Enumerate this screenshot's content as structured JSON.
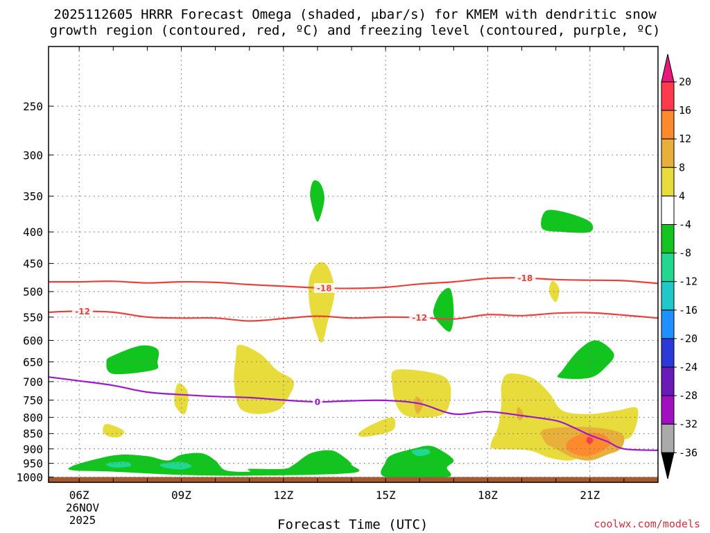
{
  "title_line1": "2025112605 HRRR Forecast Omega (shaded, μbar/s) for KMEM with dendritic snow",
  "title_line2": "growth region (contoured, red, ºC) and freezing level (contoured, purple, ºC)",
  "xlabel": "Forecast Time (UTC)",
  "credit": "coolwx.com/models",
  "chart_data": {
    "type": "time-height cross section",
    "x_ticks": [
      "06Z",
      "09Z",
      "12Z",
      "15Z",
      "18Z",
      "21Z"
    ],
    "x_tick_hours": [
      6,
      9,
      12,
      15,
      18,
      21
    ],
    "x_range_hours": [
      5.1,
      23.0
    ],
    "date_label_line1": "26NOV",
    "date_label_line2": "2025",
    "y_ticks": [
      250,
      300,
      350,
      400,
      450,
      500,
      550,
      600,
      650,
      700,
      750,
      800,
      850,
      900,
      950,
      1000
    ],
    "y_range_hpa": [
      200,
      1020
    ],
    "y_axis_log": true,
    "colorbar_labels": [
      "20",
      "16",
      "12",
      "8",
      "4",
      "-4",
      "-8",
      "-12",
      "-16",
      "-20",
      "-24",
      "-28",
      "-32",
      "-36"
    ],
    "colorbar_colors": [
      "#ff3a4c",
      "#ff8a2e",
      "#e8b03a",
      "#e8dc3c",
      "#ffffff",
      "#12c41e",
      "#20d890",
      "#20c8c8",
      "#1e90ff",
      "#2a3ad8",
      "#6a1ab8",
      "#a010c0",
      "#aaaaaa"
    ],
    "colorbar_top_color": "#e8187a",
    "colorbar_bottom_color": "#000000",
    "contours": [
      {
        "name": "-18C",
        "label": "-18",
        "color": "#e8413c",
        "points": [
          [
            5.1,
            482
          ],
          [
            6,
            482
          ],
          [
            7,
            481
          ],
          [
            8,
            484
          ],
          [
            9,
            482
          ],
          [
            10,
            483
          ],
          [
            11,
            487
          ],
          [
            12,
            490
          ],
          [
            13,
            493
          ],
          [
            14,
            494
          ],
          [
            15,
            492
          ],
          [
            16,
            486
          ],
          [
            17,
            482
          ],
          [
            18,
            476
          ],
          [
            19,
            475
          ],
          [
            20,
            478
          ],
          [
            21,
            479
          ],
          [
            22,
            480
          ],
          [
            23,
            485
          ]
        ],
        "label_at_hours": [
          13.2,
          19.1
        ]
      },
      {
        "name": "-12C",
        "label": "-12",
        "color": "#e8413c",
        "points": [
          [
            5.1,
            540
          ],
          [
            6,
            538
          ],
          [
            7,
            540
          ],
          [
            8,
            550
          ],
          [
            9,
            552
          ],
          [
            10,
            552
          ],
          [
            11,
            558
          ],
          [
            12,
            553
          ],
          [
            13,
            548
          ],
          [
            14,
            552
          ],
          [
            15,
            550
          ],
          [
            16,
            551
          ],
          [
            17,
            554
          ],
          [
            18,
            545
          ],
          [
            19,
            547
          ],
          [
            20,
            542
          ],
          [
            21,
            541
          ],
          [
            22,
            546
          ],
          [
            23,
            552
          ]
        ],
        "label_at_hours": [
          6.1,
          16.0
        ]
      },
      {
        "name": "0C freezing level",
        "label": "0",
        "color": "#9a19c8",
        "points": [
          [
            5.1,
            688
          ],
          [
            6,
            698
          ],
          [
            7,
            710
          ],
          [
            8,
            728
          ],
          [
            9,
            735
          ],
          [
            10,
            740
          ],
          [
            11,
            743
          ],
          [
            12,
            750
          ],
          [
            13,
            755
          ],
          [
            14,
            752
          ],
          [
            15,
            751
          ],
          [
            16,
            760
          ],
          [
            17,
            790
          ],
          [
            18,
            783
          ],
          [
            19,
            795
          ],
          [
            20,
            810
          ],
          [
            20.5,
            830
          ],
          [
            21,
            855
          ],
          [
            21.5,
            875
          ],
          [
            22,
            900
          ],
          [
            23,
            905
          ]
        ],
        "label_at_hours": [
          13.0
        ]
      }
    ],
    "shaded_regions": [
      {
        "value_class": "4 to 8",
        "color": "#e8dc3c",
        "polygons": [
          [
            [
              13,
              450
            ],
            [
              13.3,
              455
            ],
            [
              13.5,
              500
            ],
            [
              13.3,
              560
            ],
            [
              13.1,
              605
            ],
            [
              12.8,
              540
            ],
            [
              12.75,
              480
            ]
          ],
          [
            [
              10.7,
              610
            ],
            [
              11.3,
              630
            ],
            [
              11.8,
              670
            ],
            [
              12.3,
              700
            ],
            [
              12.1,
              750
            ],
            [
              11.8,
              780
            ],
            [
              11.2,
              790
            ],
            [
              10.7,
              770
            ],
            [
              10.55,
              700
            ],
            [
              10.6,
              640
            ]
          ],
          [
            [
              8.9,
              705
            ],
            [
              9.2,
              730
            ],
            [
              9.1,
              790
            ],
            [
              8.8,
              760
            ]
          ],
          [
            [
              15.3,
              670
            ],
            [
              16.5,
              680
            ],
            [
              16.9,
              710
            ],
            [
              16.8,
              780
            ],
            [
              16.3,
              800
            ],
            [
              15.6,
              795
            ],
            [
              15.3,
              760
            ],
            [
              15.2,
              710
            ]
          ],
          [
            [
              14.6,
              822
            ],
            [
              15.2,
              800
            ],
            [
              15.2,
              840
            ],
            [
              14.4,
              860
            ],
            [
              14.2,
              850
            ]
          ],
          [
            [
              18.6,
              680
            ],
            [
              19.3,
              690
            ],
            [
              19.8,
              730
            ],
            [
              20.2,
              780
            ],
            [
              21.0,
              790
            ],
            [
              21.8,
              780
            ],
            [
              22.4,
              775
            ],
            [
              22.2,
              860
            ],
            [
              21.5,
              870
            ],
            [
              21.0,
              890
            ],
            [
              20.8,
              920
            ],
            [
              20.4,
              940
            ],
            [
              19.8,
              930
            ],
            [
              19.2,
              905
            ],
            [
              18.2,
              900
            ],
            [
              18.1,
              880
            ],
            [
              18.3,
              830
            ],
            [
              18.4,
              760
            ],
            [
              18.4,
              710
            ]
          ],
          [
            [
              19.9,
              480
            ],
            [
              20.1,
              495
            ],
            [
              20.0,
              520
            ],
            [
              19.8,
              500
            ]
          ],
          [
            [
              6.8,
              820
            ],
            [
              7.3,
              840
            ],
            [
              7.2,
              860
            ],
            [
              6.9,
              860
            ],
            [
              6.7,
              845
            ]
          ]
        ]
      },
      {
        "value_class": "8 to 12",
        "color": "#e8b03a",
        "polygons": [
          [
            [
              15.9,
              740
            ],
            [
              16.1,
              760
            ],
            [
              15.95,
              790
            ],
            [
              15.85,
              770
            ]
          ],
          [
            [
              18.9,
              770
            ],
            [
              19.05,
              790
            ],
            [
              18.95,
              810
            ],
            [
              18.85,
              790
            ]
          ],
          [
            [
              19.6,
              840
            ],
            [
              20.3,
              830
            ],
            [
              21.0,
              830
            ],
            [
              21.7,
              840
            ],
            [
              22.0,
              860
            ],
            [
              21.9,
              900
            ],
            [
              21.5,
              920
            ],
            [
              21.0,
              940
            ],
            [
              20.5,
              930
            ],
            [
              20.0,
              900
            ],
            [
              19.7,
              880
            ]
          ]
        ]
      },
      {
        "value_class": "12 to 16",
        "color": "#ff8a2e",
        "polygons": [
          [
            [
              20.4,
              870
            ],
            [
              20.8,
              850
            ],
            [
              21.2,
              848
            ],
            [
              21.5,
              860
            ],
            [
              21.6,
              885
            ],
            [
              21.3,
              910
            ],
            [
              20.9,
              925
            ],
            [
              20.5,
              915
            ],
            [
              20.3,
              895
            ]
          ]
        ]
      },
      {
        "value_class": "16 to 20",
        "color": "#ff3a4c",
        "polygons": [
          [
            [
              20.95,
              860
            ],
            [
              21.1,
              870
            ],
            [
              21.0,
              885
            ],
            [
              20.9,
              875
            ]
          ]
        ]
      },
      {
        "value_class": "-4 to -8",
        "color": "#12c41e",
        "polygons": [
          [
            [
              12.9,
              330
            ],
            [
              13.1,
              335
            ],
            [
              13.2,
              355
            ],
            [
              13.0,
              385
            ],
            [
              12.8,
              355
            ],
            [
              12.8,
              340
            ]
          ],
          [
            [
              19.7,
              370
            ],
            [
              20.3,
              372
            ],
            [
              21.0,
              385
            ],
            [
              21.0,
              400
            ],
            [
              20.2,
              400
            ],
            [
              19.6,
              395
            ]
          ],
          [
            [
              16.6,
              505
            ],
            [
              16.9,
              495
            ],
            [
              17.0,
              540
            ],
            [
              16.9,
              580
            ],
            [
              16.6,
              565
            ],
            [
              16.4,
              540
            ]
          ],
          [
            [
              7.0,
              635
            ],
            [
              7.8,
              612
            ],
            [
              8.3,
              620
            ],
            [
              8.3,
              650
            ],
            [
              8.2,
              670
            ],
            [
              7.0,
              680
            ],
            [
              6.8,
              650
            ]
          ],
          [
            [
              20.7,
              620
            ],
            [
              21.2,
              600
            ],
            [
              21.7,
              630
            ],
            [
              21.5,
              660
            ],
            [
              21.0,
              690
            ],
            [
              20.1,
              690
            ],
            [
              20.2,
              670
            ]
          ],
          [
            [
              5.8,
              960
            ],
            [
              6.5,
              935
            ],
            [
              7.2,
              920
            ],
            [
              8.0,
              925
            ],
            [
              8.6,
              940
            ],
            [
              9.0,
              920
            ],
            [
              9.6,
              915
            ],
            [
              10.0,
              940
            ],
            [
              10.3,
              975
            ],
            [
              11.0,
              980
            ],
            [
              11.0,
              970
            ],
            [
              12.0,
              970
            ],
            [
              12.3,
              955
            ],
            [
              12.8,
              915
            ],
            [
              13.4,
              905
            ],
            [
              13.8,
              930
            ],
            [
              14.0,
              955
            ],
            [
              14.0,
              985
            ],
            [
              11.0,
              995
            ],
            [
              9.0,
              992
            ],
            [
              7.0,
              980
            ],
            [
              5.8,
              975
            ]
          ],
          [
            [
              15.0,
              945
            ],
            [
              15.2,
              920
            ],
            [
              15.8,
              900
            ],
            [
              16.3,
              890
            ],
            [
              16.7,
              910
            ],
            [
              17.0,
              940
            ],
            [
              16.8,
              965
            ],
            [
              16.8,
              1000
            ],
            [
              15.0,
              1000
            ]
          ]
        ]
      },
      {
        "value_class": "-8 to -12",
        "color": "#20d890",
        "polygons": [
          [
            [
              6.8,
              950
            ],
            [
              7.4,
              945
            ],
            [
              7.5,
              960
            ],
            [
              7.0,
              965
            ]
          ],
          [
            [
              8.4,
              952
            ],
            [
              9.0,
              945
            ],
            [
              9.3,
              960
            ],
            [
              9.0,
              972
            ],
            [
              8.5,
              965
            ]
          ],
          [
            [
              15.8,
              905
            ],
            [
              16.2,
              900
            ],
            [
              16.3,
              915
            ],
            [
              16.0,
              925
            ],
            [
              15.8,
              915
            ]
          ]
        ]
      }
    ],
    "ground_color": "#a35a2e",
    "ground_pressure_hpa": 1000
  }
}
